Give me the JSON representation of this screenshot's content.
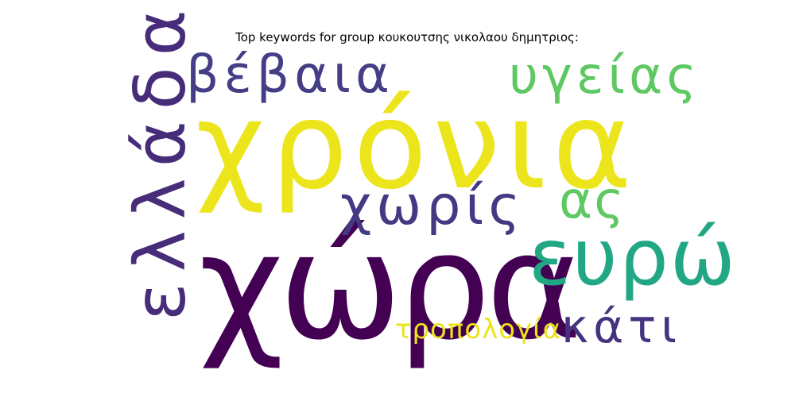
{
  "title": "Top keywords for group κουκουτσης νικολαου δημητριος:",
  "words": [
    {
      "id": "xora",
      "text": "χώρα",
      "color": "#440154"
    },
    {
      "id": "xronia",
      "text": "χρόνια",
      "color": "#ece51b"
    },
    {
      "id": "ellada",
      "text": "ελλάδα",
      "color": "#472c7a"
    },
    {
      "id": "eyro",
      "text": "ευρώ",
      "color": "#22a785"
    },
    {
      "id": "xoris",
      "text": "χωρίς",
      "color": "#443983"
    },
    {
      "id": "vevaia",
      "text": "βέβαια",
      "color": "#433e85"
    },
    {
      "id": "ygeias",
      "text": "υγείας",
      "color": "#5ec962"
    },
    {
      "id": "kati",
      "text": "κάτι",
      "color": "#46337f"
    },
    {
      "id": "as",
      "text": "ας",
      "color": "#5ec962"
    },
    {
      "id": "tropologia",
      "text": "τροπολογία",
      "color": "#ece51b"
    }
  ]
}
